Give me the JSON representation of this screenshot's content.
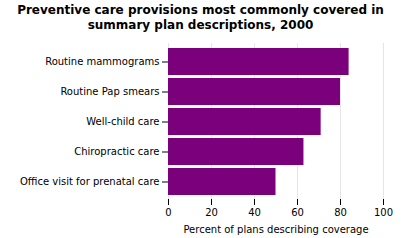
{
  "chart_data": {
    "type": "bar",
    "orientation": "horizontal",
    "title": "Preventive care provisions most commonly covered in\nsummary plan descriptions, 2000",
    "categories": [
      "Office visit for prenatal care",
      "Chiropractic care",
      "Well-child care",
      "Routine Pap smears",
      "Routine mammograms"
    ],
    "values": [
      50,
      63,
      71,
      80,
      84
    ],
    "color": "#7b007b",
    "xlim": [
      0,
      100
    ],
    "xticks": [
      0,
      20,
      40,
      60,
      80,
      100
    ],
    "xlabel": "Percent of plans describing coverage",
    "grid": true
  }
}
